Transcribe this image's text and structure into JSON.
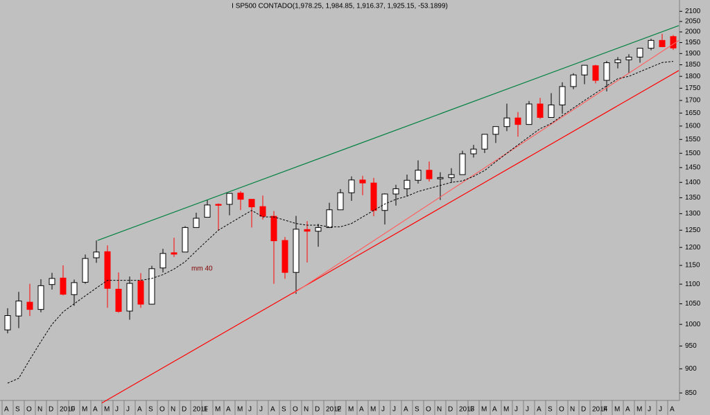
{
  "chart_data": {
    "type": "candlestick",
    "title": "I SP500 CONTADO(1,978.25, 1,984.85, 1,916.37, 1,925.15, -53.1899)",
    "log_y": true,
    "ylim": [
      835,
      2157
    ],
    "yticks": [
      850,
      900,
      950,
      1000,
      1050,
      1100,
      1150,
      1200,
      1250,
      1300,
      1350,
      1400,
      1450,
      1500,
      1550,
      1600,
      1650,
      1700,
      1750,
      1800,
      1850,
      1900,
      1950,
      2000,
      2050,
      2100
    ],
    "categories": [
      "A",
      "S",
      "O",
      "N",
      "D",
      "2010",
      "F",
      "M",
      "A",
      "M",
      "J",
      "J",
      "A",
      "S",
      "O",
      "N",
      "D",
      "2011",
      "F",
      "M",
      "A",
      "M",
      "J",
      "J",
      "A",
      "S",
      "O",
      "N",
      "D",
      "2012",
      "F",
      "M",
      "A",
      "M",
      "J",
      "J",
      "A",
      "S",
      "O",
      "N",
      "D",
      "2013",
      "F",
      "M",
      "A",
      "M",
      "J",
      "J",
      "A",
      "S",
      "O",
      "N",
      "D",
      "2014",
      "F",
      "M",
      "A",
      "M",
      "J",
      "J",
      "A"
    ],
    "up_color": "#ffffff",
    "down_color": "#ff0000",
    "open": [
      987,
      1020,
      1054,
      1036,
      1099,
      1116,
      1073,
      1105,
      1171,
      1188,
      1087,
      1032,
      1108,
      1049,
      1143,
      1185,
      1187,
      1258,
      1289,
      1329,
      1329,
      1365,
      1345,
      1322,
      1292,
      1220,
      1131,
      1252,
      1247,
      1258,
      1312,
      1366,
      1408,
      1398,
      1310,
      1362,
      1379,
      1407,
      1441,
      1412,
      1416,
      1426,
      1498,
      1515,
      1569,
      1598,
      1631,
      1606,
      1686,
      1633,
      1682,
      1757,
      1806,
      1846,
      1783,
      1859,
      1872,
      1884,
      1924,
      1960,
      1978
    ],
    "high": [
      1039,
      1080,
      1101,
      1113,
      1130,
      1150,
      1112,
      1180,
      1220,
      1206,
      1131,
      1120,
      1129,
      1149,
      1196,
      1228,
      1262,
      1303,
      1344,
      1332,
      1364,
      1371,
      1346,
      1357,
      1308,
      1230,
      1293,
      1277,
      1269,
      1334,
      1378,
      1420,
      1422,
      1415,
      1364,
      1392,
      1426,
      1475,
      1471,
      1434,
      1448,
      1509,
      1530,
      1570,
      1597,
      1687,
      1654,
      1698,
      1710,
      1730,
      1775,
      1813,
      1849,
      1850,
      1867,
      1884,
      1897,
      1924,
      1968,
      1991,
      1985
    ],
    "low": [
      979,
      991,
      1020,
      1029,
      1086,
      1071,
      1045,
      1101,
      1157,
      1040,
      1028,
      1011,
      1040,
      1048,
      1131,
      1173,
      1187,
      1258,
      1289,
      1249,
      1295,
      1311,
      1258,
      1282,
      1101,
      1114,
      1075,
      1158,
      1202,
      1258,
      1312,
      1340,
      1358,
      1292,
      1267,
      1325,
      1354,
      1396,
      1403,
      1343,
      1398,
      1426,
      1485,
      1501,
      1537,
      1581,
      1560,
      1605,
      1627,
      1633,
      1647,
      1746,
      1767,
      1770,
      1737,
      1834,
      1814,
      1859,
      1915,
      1930,
      1916
    ],
    "close": [
      1021,
      1057,
      1036,
      1096,
      1115,
      1074,
      1104,
      1169,
      1187,
      1089,
      1031,
      1102,
      1049,
      1141,
      1183,
      1181,
      1258,
      1286,
      1327,
      1326,
      1364,
      1345,
      1321,
      1292,
      1219,
      1131,
      1253,
      1247,
      1258,
      1312,
      1366,
      1408,
      1398,
      1310,
      1362,
      1379,
      1407,
      1441,
      1412,
      1416,
      1426,
      1498,
      1515,
      1569,
      1598,
      1631,
      1606,
      1686,
      1633,
      1682,
      1757,
      1806,
      1848,
      1783,
      1859,
      1872,
      1884,
      1924,
      1960,
      1931,
      1925
    ],
    "moving_average": {
      "name": "mm 40",
      "color": "#000000",
      "values": [
        870,
        880,
        920,
        960,
        1000,
        1030,
        1050,
        1070,
        1090,
        1110,
        1110,
        1110,
        1110,
        1115,
        1125,
        1140,
        1160,
        1190,
        1220,
        1250,
        1270,
        1290,
        1310,
        1290,
        1290,
        1280,
        1270,
        1265,
        1265,
        1260,
        1260,
        1270,
        1290,
        1310,
        1330,
        1345,
        1355,
        1370,
        1380,
        1390,
        1400,
        1405,
        1420,
        1440,
        1470,
        1500,
        1530,
        1560,
        1590,
        1610,
        1640,
        1670,
        1700,
        1730,
        1760,
        1790,
        1800,
        1820,
        1840,
        1860,
        1865
      ]
    },
    "trendlines": [
      {
        "color": "#008040",
        "x": [
          8.6,
          61
        ],
        "values": [
          1220,
          2030
        ]
      },
      {
        "color": "#ff0000",
        "x": [
          9,
          61
        ],
        "values": [
          830,
          1825
        ]
      },
      {
        "color": "#ff6060",
        "x": [
          26.2,
          61
        ],
        "values": [
          1075,
          1960
        ]
      }
    ]
  }
}
